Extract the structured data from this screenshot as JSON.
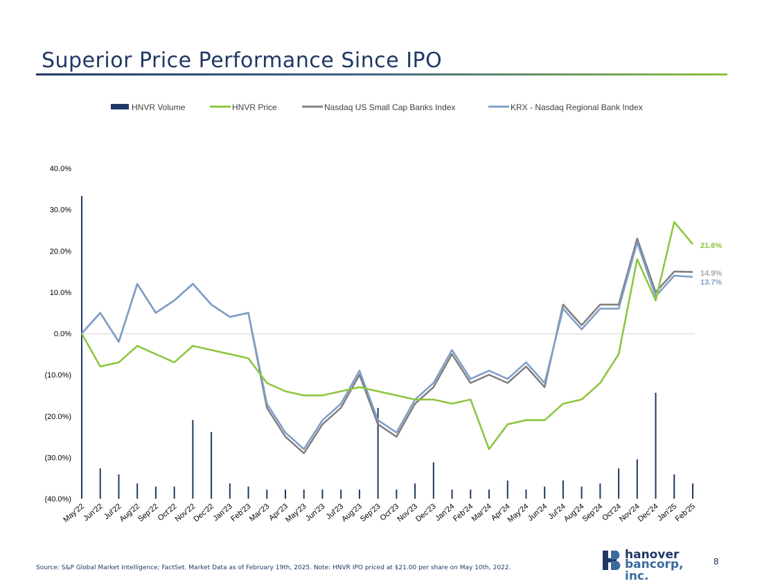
{
  "slide": {
    "title": "Superior Price Performance Since IPO",
    "page_number": "8",
    "footnote": "Source: S&P Global Market Intelligence; FactSet. Market Data as of February 19th, 2025. Note: HNVR IPO priced at $21.00 per share on May 10th, 2022.",
    "logo": {
      "line1": "hanover",
      "line2": "bancorp, inc."
    }
  },
  "colors": {
    "volume": "#1f3864",
    "hnvr_price": "#8cc63f",
    "nasdaq_small_cap": "#808080",
    "krx": "#7f9fc8",
    "title": "#1f3864"
  },
  "chart_data": {
    "type": "line",
    "title": "",
    "xlabel": "",
    "ylabel": "",
    "ylim": [
      -40,
      40
    ],
    "y_ticks": [
      "40.0%",
      "30.0%",
      "20.0%",
      "10.0%",
      "0.0%",
      "(10.0%)",
      "(20.0%)",
      "(30.0%)",
      "(40.0%)"
    ],
    "y_tick_values": [
      40,
      30,
      20,
      10,
      0,
      -10,
      -20,
      -30,
      -40
    ],
    "categories": [
      "May'22",
      "Jun'22",
      "Jul'22",
      "Aug'22",
      "Sep'22",
      "Oct'22",
      "Nov'22",
      "Dec'22",
      "Jan'23",
      "Feb'23",
      "Mar'23",
      "Apr'23",
      "May'23",
      "Jun'23",
      "Jul'23",
      "Aug'23",
      "Sep'23",
      "Oct'23",
      "Nov'23",
      "Dec'23",
      "Jan'24",
      "Feb'24",
      "Mar'24",
      "Apr'24",
      "May'24",
      "Jun'24",
      "Jul'24",
      "Aug'24",
      "Sep'24",
      "Oct'24",
      "Nov'24",
      "Dec'24",
      "Jan'25",
      "Feb'25"
    ],
    "legend": [
      "HNVR Volume",
      "HNVR Price",
      "Nasdaq US Small Cap Banks Index",
      "KRX - Nasdaq Regional Bank Index"
    ],
    "legend_position": "top",
    "grid": false,
    "series": [
      {
        "name": "HNVR Price",
        "values": [
          0,
          -8,
          -7,
          -3,
          -5,
          -7,
          -3,
          -4,
          -5,
          -6,
          -12,
          -14,
          -15,
          -15,
          -14,
          -13,
          -14,
          -15,
          -16,
          -16,
          -17,
          -16,
          -28,
          -22,
          -21,
          -21,
          -17,
          -16,
          -12,
          -5,
          18,
          8,
          27,
          21.6
        ],
        "end_label": "21.6%"
      },
      {
        "name": "Nasdaq US Small Cap Banks Index",
        "values": [
          0,
          5,
          -2,
          12,
          5,
          8,
          12,
          7,
          4,
          5,
          -18,
          -25,
          -29,
          -22,
          -18,
          -10,
          -22,
          -25,
          -17,
          -13,
          -5,
          -12,
          -10,
          -12,
          -8,
          -13,
          7,
          2,
          7,
          7,
          23,
          10,
          15,
          14.9
        ],
        "end_label": "14.9%"
      },
      {
        "name": "KRX - Nasdaq Regional Bank Index",
        "values": [
          0,
          5,
          -2,
          12,
          5,
          8,
          12,
          7,
          4,
          5,
          -17,
          -24,
          -28,
          -21,
          -17,
          -9,
          -21,
          -24,
          -16,
          -12,
          -4,
          -11,
          -9,
          -11,
          -7,
          -12,
          6,
          1,
          6,
          6,
          22,
          9,
          14,
          13.7
        ],
        "end_label": "13.7%"
      },
      {
        "name": "HNVR Volume",
        "values": [
          100,
          10,
          8,
          5,
          4,
          4,
          26,
          22,
          5,
          4,
          3,
          3,
          3,
          3,
          3,
          3,
          30,
          3,
          5,
          12,
          3,
          3,
          3,
          6,
          3,
          4,
          6,
          4,
          5,
          10,
          13,
          35,
          8,
          5
        ]
      }
    ]
  }
}
